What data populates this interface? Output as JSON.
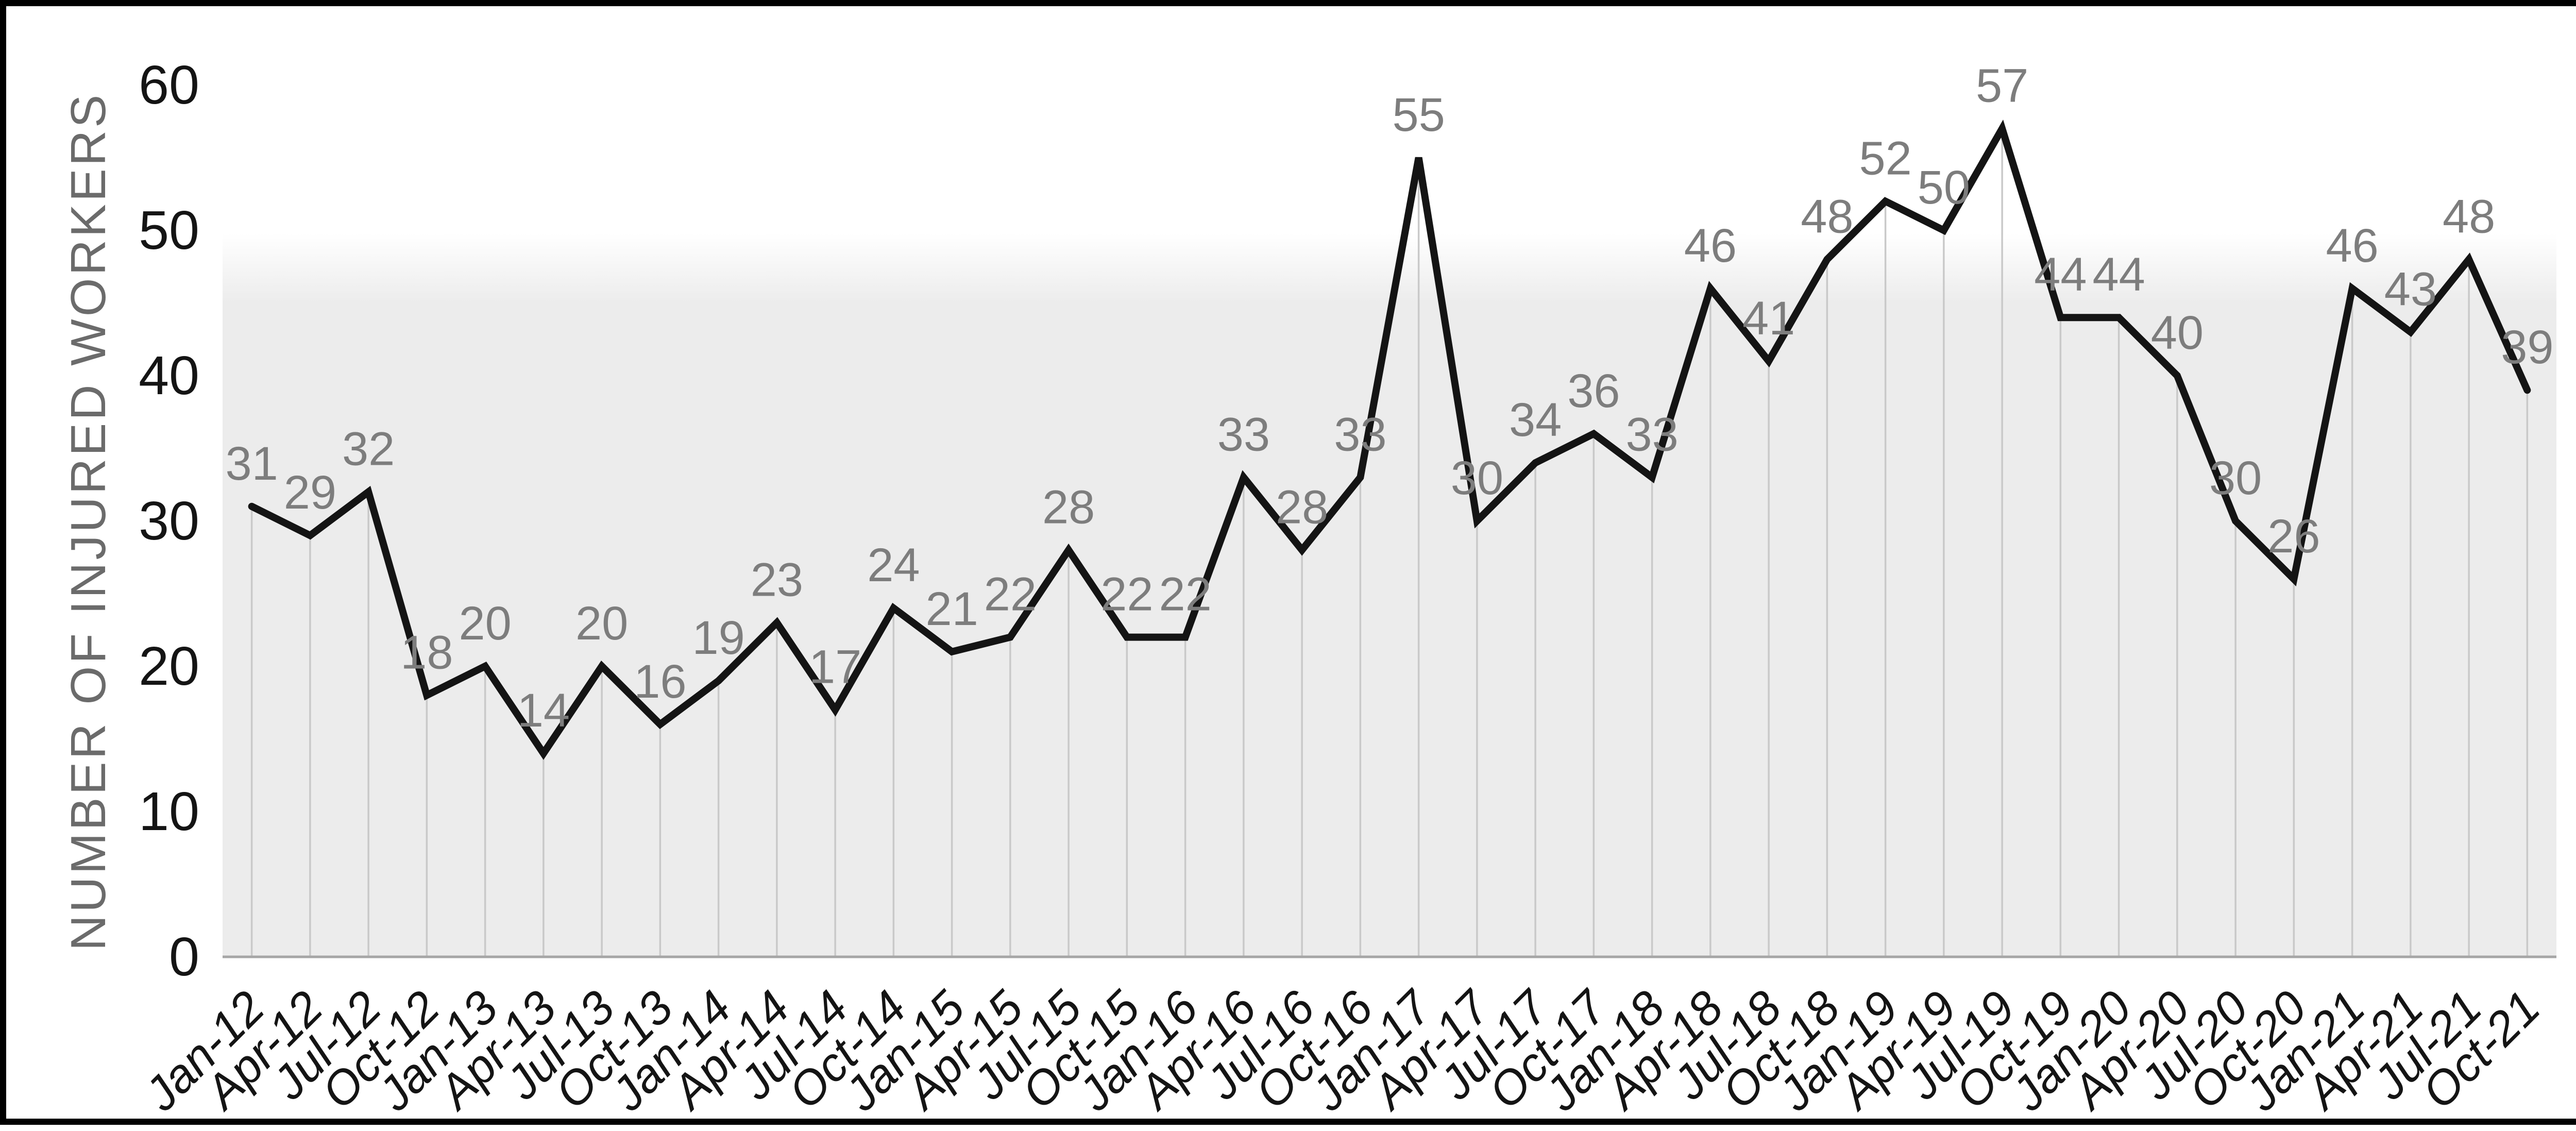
{
  "chart_data": {
    "type": "line",
    "title": "",
    "xlabel": "",
    "ylabel": "NUMBER OF INJURED WORKERS",
    "categories": [
      "Jan-12",
      "Apr-12",
      "Jul-12",
      "Oct-12",
      "Jan-13",
      "Apr-13",
      "Jul-13",
      "Oct-13",
      "Jan-14",
      "Apr-14",
      "Jul-14",
      "Oct-14",
      "Jan-15",
      "Apr-15",
      "Jul-15",
      "Oct-15",
      "Jan-16",
      "Apr-16",
      "Jul-16",
      "Oct-16",
      "Jan-17",
      "Apr-17",
      "Jul-17",
      "Oct-17",
      "Jan-18",
      "Apr-18",
      "Jul-18",
      "Oct-18",
      "Jan-19",
      "Apr-19",
      "Jul-19",
      "Oct-19",
      "Jan-20",
      "Apr-20",
      "Jul-20",
      "Oct-20",
      "Jan-21",
      "Apr-21",
      "Jul-21",
      "Oct-21"
    ],
    "values": [
      31,
      29,
      32,
      18,
      20,
      14,
      20,
      16,
      19,
      23,
      17,
      24,
      21,
      22,
      28,
      22,
      22,
      33,
      28,
      33,
      55,
      30,
      34,
      36,
      33,
      46,
      41,
      48,
      52,
      50,
      57,
      44,
      44,
      40,
      30,
      26,
      46,
      43,
      48,
      39
    ],
    "data_labels": [
      31,
      29,
      32,
      18,
      20,
      14,
      20,
      16,
      19,
      23,
      17,
      24,
      21,
      22,
      28,
      22,
      22,
      33,
      28,
      33,
      55,
      30,
      34,
      36,
      33,
      46,
      41,
      48,
      52,
      50,
      57,
      44,
      44,
      40,
      30,
      26,
      46,
      43,
      48,
      39
    ],
    "ylim": [
      0,
      60
    ],
    "yticks": [
      0,
      10,
      20,
      30,
      40,
      50,
      60
    ],
    "grid": "vertical drop lines from each data point",
    "legend_position": "none",
    "colors": {
      "line": "#141414",
      "data_label": "#7d7d7d",
      "tick_label": "#141414",
      "axis_title": "#6b6b6b",
      "drop_line": "#c9c9c9",
      "axis_line": "#a6a6a6",
      "plot_bg": "#ececec",
      "plot_bg_top": "#ffffff",
      "background": "#ffffff",
      "frame_border": "#000000"
    }
  }
}
